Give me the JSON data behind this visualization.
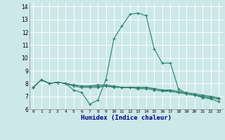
{
  "xlabel": "Humidex (Indice chaleur)",
  "ylabel": "",
  "bg_color": "#cce8e8",
  "grid_color": "#ffffff",
  "line_color": "#2d7d6e",
  "xlim": [
    -0.5,
    23.5
  ],
  "ylim": [
    6,
    14.3
  ],
  "yticks": [
    6,
    7,
    8,
    9,
    10,
    11,
    12,
    13,
    14
  ],
  "xticks": [
    0,
    1,
    2,
    3,
    4,
    5,
    6,
    7,
    8,
    9,
    10,
    11,
    12,
    13,
    14,
    15,
    16,
    17,
    18,
    19,
    20,
    21,
    22,
    23
  ],
  "series": [
    [
      7.7,
      8.3,
      8.0,
      8.1,
      8.0,
      7.5,
      7.3,
      6.4,
      6.7,
      8.3,
      11.5,
      12.5,
      13.4,
      13.5,
      13.3,
      10.7,
      9.6,
      9.6,
      7.6,
      7.2,
      7.1,
      6.9,
      6.8,
      6.6
    ],
    [
      7.7,
      8.3,
      8.0,
      8.1,
      8.0,
      7.8,
      7.7,
      7.7,
      7.7,
      7.8,
      7.8,
      7.7,
      7.7,
      7.7,
      7.7,
      7.6,
      7.5,
      7.4,
      7.3,
      7.2,
      7.1,
      7.0,
      6.9,
      6.8
    ],
    [
      7.7,
      8.3,
      8.0,
      8.1,
      8.0,
      7.9,
      7.8,
      7.8,
      7.9,
      7.9,
      7.8,
      7.7,
      7.7,
      7.6,
      7.6,
      7.5,
      7.4,
      7.4,
      7.3,
      7.2,
      7.1,
      7.0,
      6.9,
      6.8
    ],
    [
      7.7,
      8.3,
      8.0,
      8.1,
      8.0,
      7.9,
      7.8,
      7.8,
      7.8,
      7.8,
      7.7,
      7.7,
      7.7,
      7.7,
      7.7,
      7.6,
      7.5,
      7.5,
      7.4,
      7.3,
      7.2,
      7.1,
      7.0,
      6.9
    ]
  ]
}
